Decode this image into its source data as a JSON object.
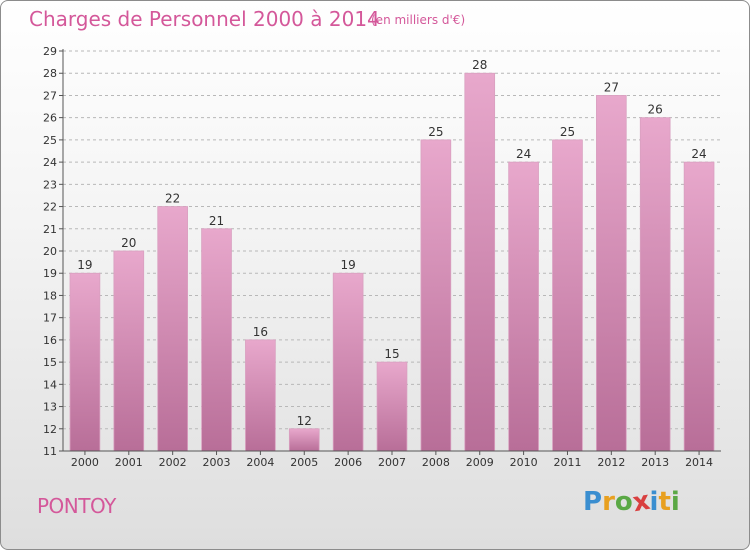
{
  "header": {
    "title": "Charges de Personnel 2000 à 2014",
    "subtitle": "(en milliers d'€)"
  },
  "footer": {
    "commune": "PONTOY",
    "logo": [
      "P",
      "r",
      "o",
      "x",
      "i",
      "t",
      "i"
    ],
    "logo_colors": [
      "#3a8ed0",
      "#e8a020",
      "#5aa845",
      "#d94040",
      "#3a8ed0",
      "#e8a020",
      "#5aa845"
    ]
  },
  "chart_data": {
    "type": "bar",
    "title": "Charges de Personnel 2000 à 2014",
    "subtitle": "(en milliers d'€)",
    "categories": [
      "2000",
      "2001",
      "2002",
      "2003",
      "2004",
      "2005",
      "2006",
      "2007",
      "2008",
      "2009",
      "2010",
      "2011",
      "2012",
      "2013",
      "2014"
    ],
    "values": [
      19,
      20,
      22,
      21,
      16,
      12,
      19,
      15,
      25,
      28,
      24,
      25,
      27,
      26,
      24
    ],
    "ylim": [
      11,
      29
    ],
    "yticks": [
      11,
      12,
      13,
      14,
      15,
      16,
      17,
      18,
      19,
      20,
      21,
      22,
      23,
      24,
      25,
      26,
      27,
      28,
      29
    ],
    "grid": "horizontal dashed",
    "bar_color_top": "#e8a8cc",
    "bar_color_bottom": "#b86e98"
  }
}
